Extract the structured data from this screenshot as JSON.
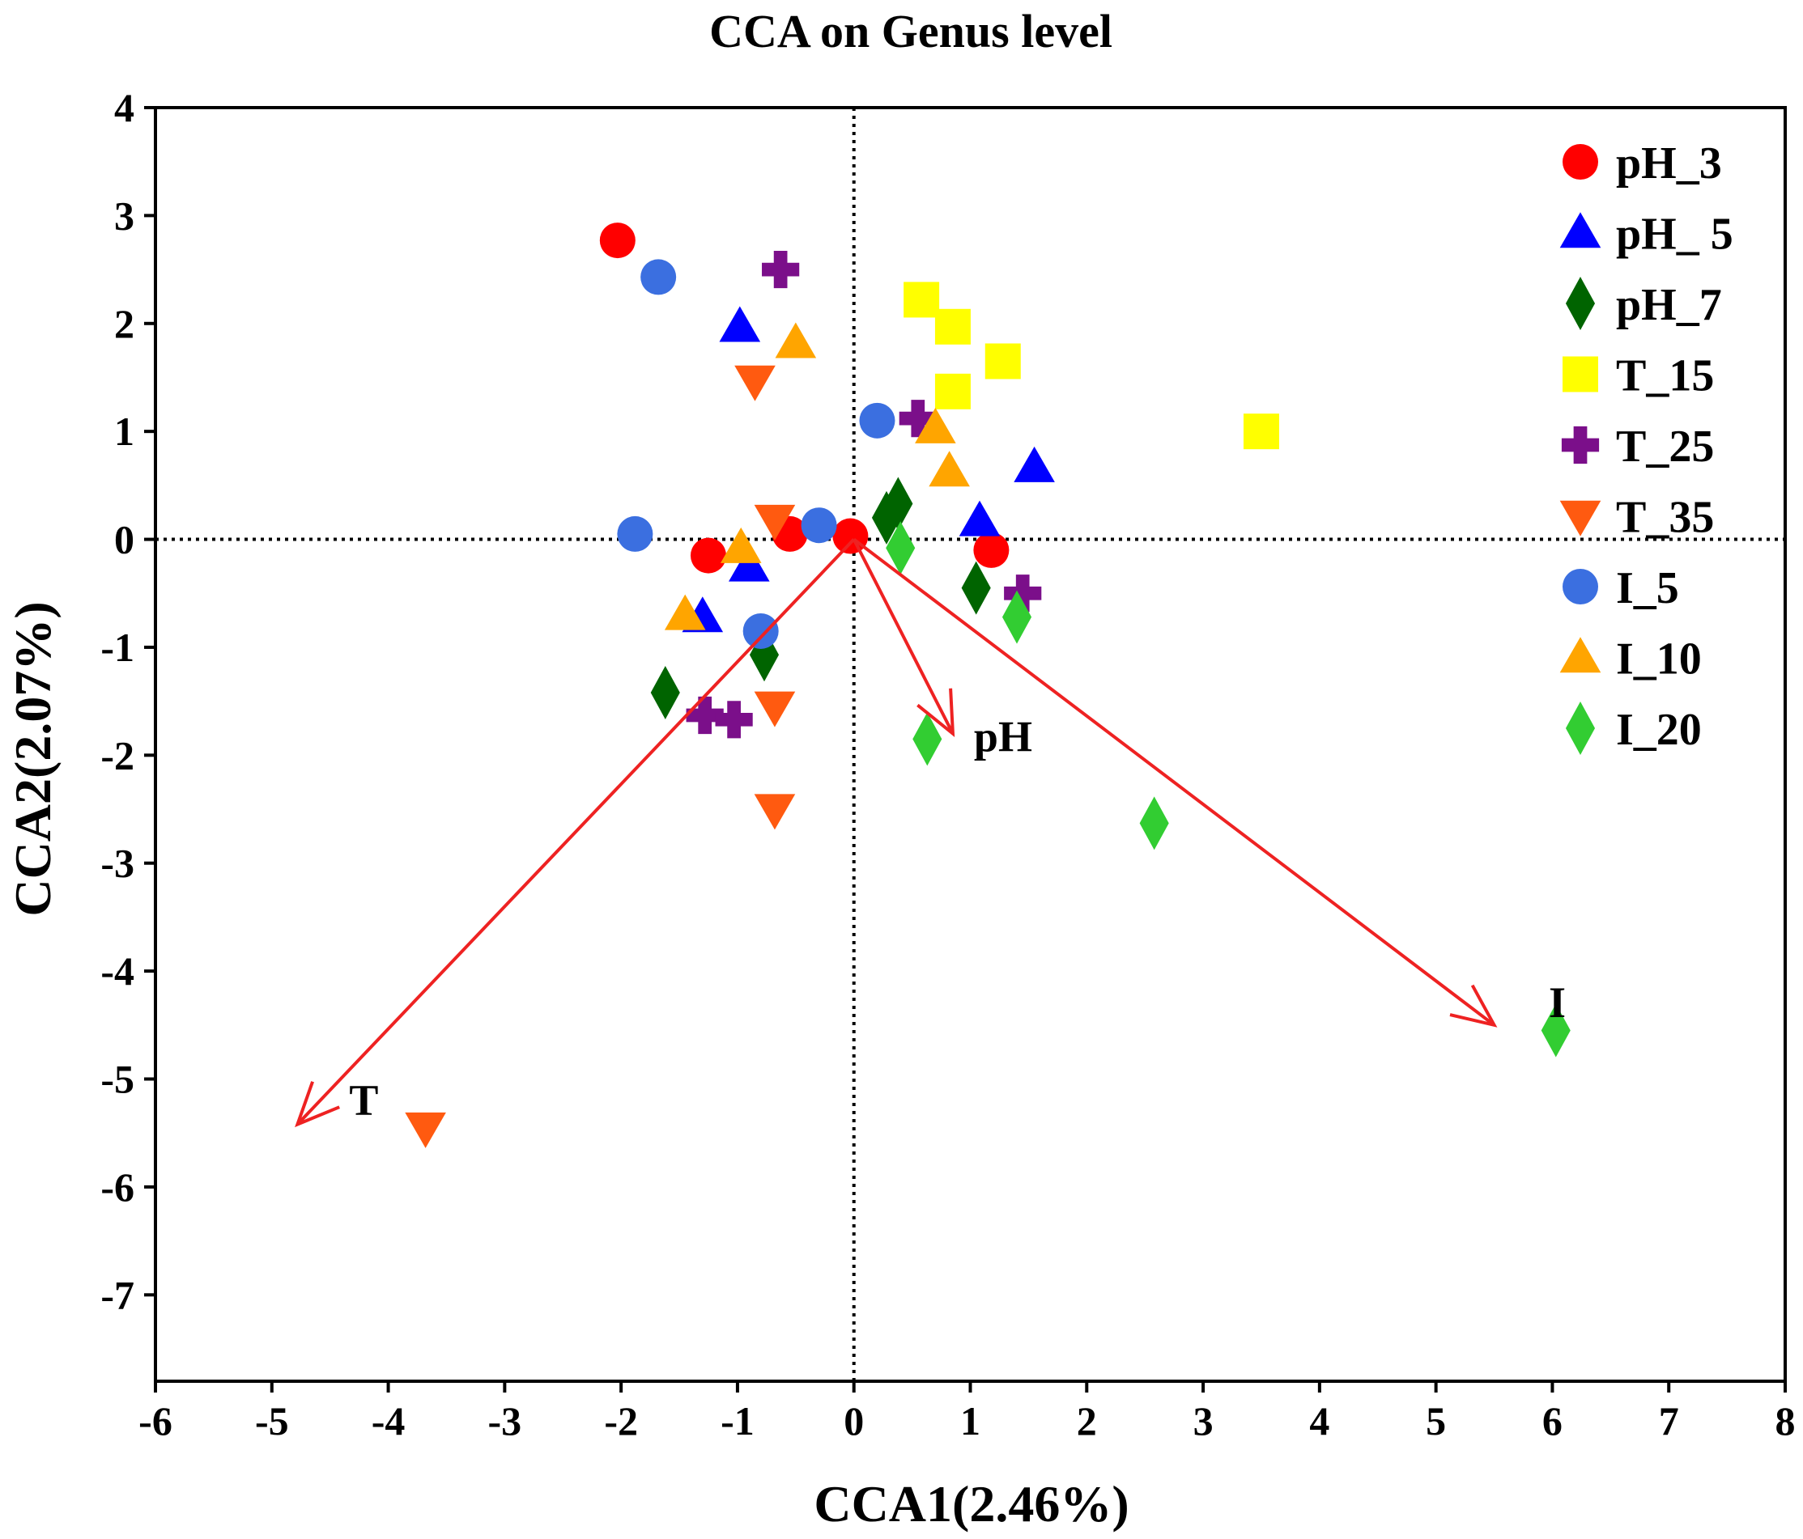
{
  "chart_data": {
    "type": "scatter",
    "title": "CCA on Genus level",
    "xlabel": "CCA1(2.46%)",
    "ylabel": "CCA2(2.07%)",
    "xlim": [
      -6,
      8
    ],
    "ylim": [
      -7.8,
      4
    ],
    "xticks": [
      -6,
      -5,
      -4,
      -3,
      -2,
      -1,
      0,
      1,
      2,
      3,
      4,
      5,
      6,
      7,
      8
    ],
    "yticks": [
      4,
      3,
      2,
      1,
      0,
      -1,
      -2,
      -3,
      -4,
      -5,
      -6,
      -7
    ],
    "legend_position": "top-right",
    "series": [
      {
        "name": "pH_3",
        "marker": "circle",
        "color": "#ff0000",
        "points": [
          [
            -2.03,
            2.77
          ],
          [
            -1.25,
            -0.15
          ],
          [
            -0.55,
            0.05
          ],
          [
            -0.03,
            0.03
          ],
          [
            1.18,
            -0.1
          ]
        ]
      },
      {
        "name": "pH_ 5",
        "marker": "triangle-up",
        "color": "#0000ff",
        "points": [
          [
            -0.98,
            1.97
          ],
          [
            -0.9,
            -0.25
          ],
          [
            -1.3,
            -0.72
          ],
          [
            1.08,
            0.17
          ],
          [
            1.55,
            0.67
          ]
        ]
      },
      {
        "name": "pH_7",
        "marker": "diamond",
        "color": "#006400",
        "points": [
          [
            -1.62,
            -1.42
          ],
          [
            -0.77,
            -1.07
          ],
          [
            0.28,
            0.2
          ],
          [
            0.38,
            0.33
          ],
          [
            1.05,
            -0.45
          ]
        ]
      },
      {
        "name": "T_15",
        "marker": "square",
        "color": "#ffff00",
        "points": [
          [
            0.58,
            2.22
          ],
          [
            0.85,
            1.97
          ],
          [
            1.28,
            1.65
          ],
          [
            0.85,
            1.37
          ],
          [
            3.5,
            1.0
          ]
        ]
      },
      {
        "name": "T_25",
        "marker": "plus",
        "color": "#7b0f8a",
        "points": [
          [
            -0.63,
            2.5
          ],
          [
            0.55,
            1.12
          ],
          [
            1.45,
            -0.5
          ],
          [
            -1.28,
            -1.63
          ],
          [
            -1.03,
            -1.67
          ]
        ]
      },
      {
        "name": "T_35",
        "marker": "triangle-down",
        "color": "#ff5a10",
        "points": [
          [
            -0.85,
            1.47
          ],
          [
            -0.68,
            0.18
          ],
          [
            -0.68,
            -1.55
          ],
          [
            -0.68,
            -2.5
          ],
          [
            -3.68,
            -5.45
          ]
        ]
      },
      {
        "name": "I_5",
        "marker": "circle",
        "color": "#3b6fe0",
        "points": [
          [
            -1.68,
            2.43
          ],
          [
            0.2,
            1.1
          ],
          [
            -0.3,
            0.13
          ],
          [
            -1.88,
            0.05
          ],
          [
            -0.8,
            -0.85
          ]
        ]
      },
      {
        "name": "I_10",
        "marker": "triangle-up",
        "color": "#ffa500",
        "points": [
          [
            -0.5,
            1.82
          ],
          [
            0.7,
            1.03
          ],
          [
            0.82,
            0.63
          ],
          [
            -0.97,
            -0.08
          ],
          [
            -1.45,
            -0.7
          ]
        ]
      },
      {
        "name": "I_20",
        "marker": "diamond",
        "color": "#32cd32",
        "points": [
          [
            0.4,
            -0.08
          ],
          [
            1.4,
            -0.72
          ],
          [
            0.63,
            -1.85
          ],
          [
            2.58,
            -2.63
          ],
          [
            6.03,
            -4.55
          ]
        ]
      }
    ],
    "vectors": [
      {
        "label": "T",
        "x": -4.78,
        "y": -5.42
      },
      {
        "label": "pH",
        "x": 0.85,
        "y": -1.8
      },
      {
        "label": "I",
        "x": 5.5,
        "y": -4.5
      }
    ],
    "arrow_color": "#ee2222"
  }
}
